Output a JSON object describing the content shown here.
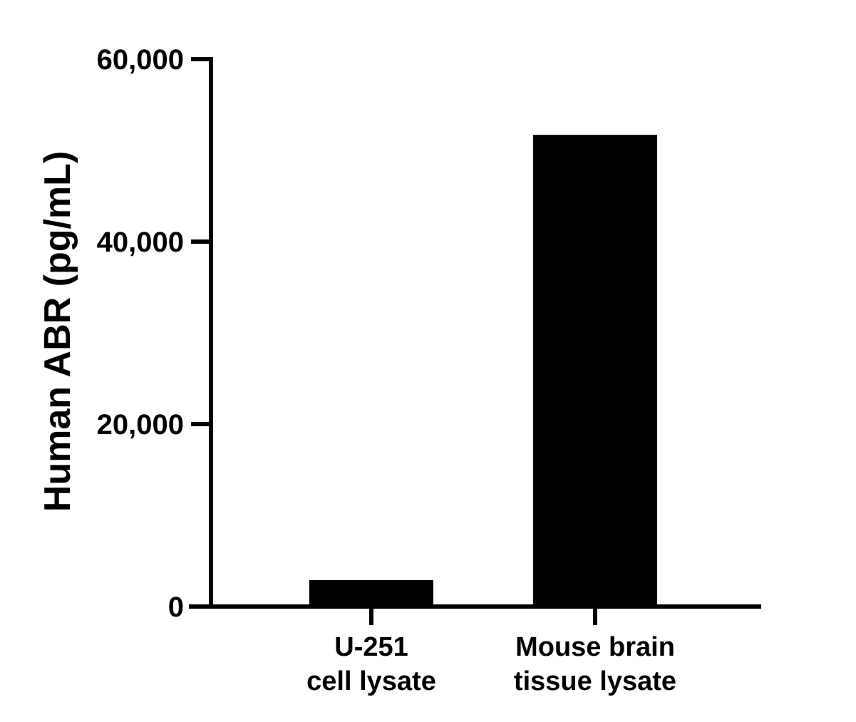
{
  "chart_data": {
    "type": "bar",
    "title": "",
    "xlabel": "",
    "ylabel": "Human ABR (pg/mL)",
    "categories": [
      [
        "U-251",
        "cell lysate"
      ],
      [
        "Mouse brain",
        "tissue lysate"
      ]
    ],
    "values": [
      2900,
      51700
    ],
    "ylim": [
      0,
      60000
    ],
    "yticks": [
      0,
      20000,
      40000,
      60000
    ],
    "ytick_labels": [
      "0",
      "20,000",
      "40,000",
      "60,000"
    ],
    "bar_color": "#000000",
    "grid": false,
    "legend": "none"
  }
}
